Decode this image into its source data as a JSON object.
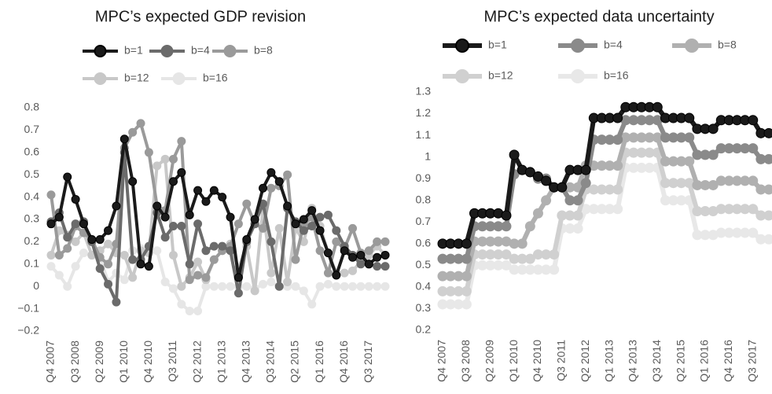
{
  "chart_data": [
    {
      "type": "line",
      "title": "MPC’s expected GDP revision",
      "categories": [
        "Q4 2007",
        null,
        null,
        "Q3 2008",
        null,
        null,
        "Q2 2009",
        null,
        null,
        "Q1 2010",
        null,
        null,
        "Q4 2010",
        null,
        null,
        "Q3 2011",
        null,
        null,
        "Q2 2012",
        null,
        null,
        "Q1 2013",
        null,
        null,
        "Q4 2013",
        null,
        null,
        "Q3 2014",
        null,
        null,
        "Q2 2015",
        null,
        null,
        "Q1 2016",
        null,
        null,
        "Q4 2016",
        null,
        null,
        "Q3 2017",
        null,
        null
      ],
      "ylim": [
        -0.2,
        0.8
      ],
      "yticks": [
        {
          "value": -0.2,
          "label": "−0.2"
        },
        {
          "value": -0.1,
          "label": "−0.1"
        },
        0,
        0.1,
        0.2,
        0.3,
        0.4,
        0.5,
        0.6,
        0.7,
        0.8
      ],
      "series": [
        {
          "name": "b=1",
          "color": "#1a1a1a",
          "values": [
            0.28,
            0.31,
            0.49,
            0.39,
            0.28,
            0.21,
            0.21,
            0.25,
            0.36,
            0.66,
            0.47,
            0.1,
            0.09,
            0.36,
            0.31,
            0.47,
            0.51,
            0.32,
            0.43,
            0.38,
            0.43,
            0.4,
            0.31,
            0.04,
            0.21,
            0.3,
            0.44,
            0.51,
            0.47,
            0.36,
            0.28,
            0.3,
            0.34,
            0.25,
            0.15,
            0.05,
            0.16,
            0.13,
            0.14,
            0.1,
            0.13,
            0.14
          ]
        },
        {
          "name": "b=4",
          "color": "#6b6b6b",
          "values": [
            0.29,
            0.33,
            0.22,
            0.28,
            0.29,
            0.2,
            0.08,
            0.01,
            -0.07,
            0.6,
            0.12,
            0.12,
            0.18,
            0.33,
            0.22,
            0.27,
            0.27,
            0.1,
            0.28,
            0.16,
            0.18,
            0.18,
            0.16,
            -0.03,
            0.2,
            0.28,
            0.37,
            0.2,
            0,
            0.35,
            0.29,
            0.25,
            0.27,
            0.31,
            0.32,
            0.25,
            0.18,
            0.14,
            0.1,
            0.1,
            0.09,
            0.09
          ]
        },
        {
          "name": "b=8",
          "color": "#9a9a9a",
          "values": [
            0.41,
            0.14,
            0.17,
            0.27,
            0.24,
            0.21,
            0.13,
            0.1,
            0.19,
            0.62,
            0.69,
            0.73,
            0.6,
            0.36,
            0.34,
            0.57,
            0.65,
            0.03,
            0.05,
            0.04,
            0.12,
            0.16,
            0.18,
            0.28,
            0.37,
            0.28,
            0.26,
            0.44,
            0.45,
            0.5,
            0.12,
            0.28,
            0.31,
            0.16,
            0.06,
            0.2,
            0.17,
            0.26,
            0.15,
            0.16,
            0.2,
            0.2
          ]
        },
        {
          "name": "b=12",
          "color": "#c8c8c8",
          "values": [
            0.14,
            0.25,
            0.23,
            0.2,
            0.24,
            0.14,
            0.16,
            0.19,
            0.15,
            0.14,
            0.04,
            0.16,
            0.15,
            0.54,
            0.57,
            0.14,
            0,
            0.04,
            0.11,
            0.03,
            0.12,
            0.16,
            0.19,
            0.08,
            0.18,
            -0.02,
            0.35,
            0.06,
            0.26,
            0.02,
            0.26,
            0.2,
            0.35,
            0.27,
            0.15,
            0.06,
            0.06,
            0.07,
            0.11,
            0.14,
            0.18,
            0.14
          ]
        },
        {
          "name": "b=16",
          "color": "#e6e6e6",
          "values": [
            0.09,
            0.05,
            0,
            0.09,
            0.15,
            0.14,
            0.13,
            0.02,
            0.06,
            0.03,
            0.16,
            0.17,
            0.16,
            0.16,
            0.02,
            -0.01,
            -0.08,
            -0.11,
            -0.11,
            0,
            0,
            0,
            0,
            0,
            0,
            -0.01,
            0.01,
            0.02,
            0,
            0,
            0,
            -0.02,
            -0.08,
            0,
            0.01,
            0,
            0,
            0,
            0,
            0,
            0,
            0
          ]
        }
      ]
    },
    {
      "type": "line",
      "title": "MPC’s expected data uncertainty",
      "categories": [
        "Q4 2007",
        null,
        null,
        "Q3 2008",
        null,
        null,
        "Q2 2009",
        null,
        null,
        "Q1 2010",
        null,
        null,
        "Q4 2010",
        null,
        null,
        "Q3 2011",
        null,
        null,
        "Q2 2012",
        null,
        null,
        "Q1 2013",
        null,
        null,
        "Q4 2013",
        null,
        null,
        "Q3 2014",
        null,
        null,
        "Q2 2015",
        null,
        null,
        "Q1 2016",
        null,
        null,
        "Q4 2016",
        null,
        null,
        "Q3 2017",
        null,
        null
      ],
      "ylim": [
        0.2,
        1.3
      ],
      "yticks": [
        0.2,
        0.3,
        0.4,
        0.5,
        0.6,
        0.7,
        0.8,
        0.9,
        1,
        1.1,
        1.2,
        1.3
      ],
      "series": [
        {
          "name": "b=1",
          "color": "#1a1a1a",
          "values": [
            0.6,
            0.6,
            0.6,
            0.6,
            0.74,
            0.74,
            0.74,
            0.74,
            0.73,
            1.01,
            0.94,
            0.93,
            0.91,
            0.89,
            0.86,
            0.86,
            0.94,
            0.94,
            0.94,
            1.18,
            1.18,
            1.18,
            1.18,
            1.23,
            1.23,
            1.23,
            1.23,
            1.23,
            1.18,
            1.18,
            1.18,
            1.18,
            1.13,
            1.13,
            1.13,
            1.17,
            1.17,
            1.17,
            1.17,
            1.17,
            1.11,
            1.11
          ]
        },
        {
          "name": "b=4",
          "color": "#8a8a8a",
          "values": [
            0.53,
            0.53,
            0.53,
            0.53,
            0.68,
            0.68,
            0.68,
            0.68,
            0.68,
            0.92,
            0.94,
            0.93,
            0.9,
            0.9,
            0.86,
            0.86,
            0.8,
            0.8,
            0.88,
            1.08,
            1.08,
            1.08,
            1.08,
            1.17,
            1.17,
            1.17,
            1.17,
            1.17,
            1.09,
            1.09,
            1.09,
            1.09,
            1.01,
            1.01,
            1.01,
            1.04,
            1.04,
            1.04,
            1.04,
            1.04,
            0.99,
            0.99
          ]
        },
        {
          "name": "b=8",
          "color": "#b0b0b0",
          "values": [
            0.45,
            0.45,
            0.45,
            0.45,
            0.61,
            0.61,
            0.61,
            0.61,
            0.61,
            0.6,
            0.6,
            0.68,
            0.74,
            0.8,
            0.86,
            0.86,
            0.86,
            0.86,
            0.96,
            0.96,
            0.96,
            0.96,
            0.96,
            1.09,
            1.09,
            1.09,
            1.09,
            1.09,
            0.98,
            0.98,
            0.98,
            0.98,
            0.87,
            0.87,
            0.87,
            0.89,
            0.89,
            0.89,
            0.89,
            0.89,
            0.85,
            0.85
          ]
        },
        {
          "name": "b=12",
          "color": "#d0d0d0",
          "values": [
            0.38,
            0.38,
            0.38,
            0.38,
            0.55,
            0.55,
            0.55,
            0.55,
            0.55,
            0.53,
            0.53,
            0.53,
            0.55,
            0.55,
            0.55,
            0.73,
            0.73,
            0.73,
            0.85,
            0.85,
            0.85,
            0.85,
            0.85,
            1.02,
            1.02,
            1.02,
            1.02,
            1.02,
            0.88,
            0.88,
            0.88,
            0.88,
            0.75,
            0.75,
            0.75,
            0.76,
            0.76,
            0.76,
            0.76,
            0.76,
            0.73,
            0.73
          ]
        },
        {
          "name": "b=16",
          "color": "#e8e8e8",
          "values": [
            0.32,
            0.32,
            0.32,
            0.32,
            0.5,
            0.5,
            0.5,
            0.5,
            0.5,
            0.48,
            0.48,
            0.48,
            0.48,
            0.48,
            0.48,
            0.67,
            0.67,
            0.67,
            0.76,
            0.76,
            0.76,
            0.76,
            0.76,
            0.95,
            0.95,
            0.95,
            0.95,
            0.95,
            0.8,
            0.8,
            0.8,
            0.8,
            0.64,
            0.64,
            0.64,
            0.65,
            0.65,
            0.65,
            0.65,
            0.65,
            0.62,
            0.62
          ]
        }
      ]
    }
  ]
}
